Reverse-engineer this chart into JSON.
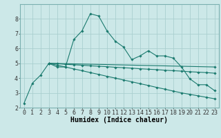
{
  "background_color": "#cce8e8",
  "grid_color": "#aacfcf",
  "line_color": "#1a7a6e",
  "xlabel": "Humidex (Indice chaleur)",
  "xlabel_fontsize": 7,
  "tick_fontsize": 6,
  "xlim": [
    -0.5,
    23.5
  ],
  "ylim": [
    2,
    9
  ],
  "yticks": [
    2,
    3,
    4,
    5,
    6,
    7,
    8
  ],
  "xticks": [
    0,
    1,
    2,
    3,
    4,
    5,
    6,
    7,
    8,
    9,
    10,
    11,
    12,
    13,
    14,
    15,
    16,
    17,
    18,
    19,
    20,
    21,
    22,
    23
  ],
  "series": [
    {
      "x": [
        0,
        1,
        2,
        3,
        4,
        5,
        6,
        7,
        8,
        9,
        10,
        11,
        12,
        13,
        14,
        15,
        16,
        17,
        18,
        19,
        20,
        21,
        22,
        23
      ],
      "y": [
        2.3,
        3.65,
        4.2,
        5.0,
        4.75,
        4.75,
        6.6,
        7.2,
        8.35,
        8.2,
        7.2,
        6.5,
        6.1,
        5.25,
        5.5,
        5.85,
        5.5,
        5.5,
        5.35,
        4.75,
        3.95,
        3.55,
        3.55,
        3.15
      ]
    },
    {
      "x": [
        3,
        4,
        5,
        6,
        7,
        8,
        9,
        10,
        11,
        12,
        13,
        14,
        15,
        16,
        17,
        18,
        19,
        20,
        21,
        22,
        23
      ],
      "y": [
        5.0,
        4.87,
        4.75,
        4.62,
        4.5,
        4.37,
        4.25,
        4.12,
        4.0,
        3.87,
        3.75,
        3.62,
        3.5,
        3.37,
        3.25,
        3.12,
        3.0,
        2.9,
        2.8,
        2.7,
        2.6
      ]
    },
    {
      "x": [
        3,
        23
      ],
      "y": [
        5.0,
        4.75
      ]
    },
    {
      "x": [
        3,
        4,
        5,
        6,
        7,
        8,
        9,
        10,
        11,
        12,
        13,
        14,
        15,
        16,
        17,
        18,
        19,
        20,
        21,
        22,
        23
      ],
      "y": [
        5.0,
        4.97,
        4.93,
        4.9,
        4.87,
        4.83,
        4.8,
        4.77,
        4.73,
        4.7,
        4.67,
        4.63,
        4.6,
        4.57,
        4.53,
        4.5,
        4.47,
        4.43,
        4.4,
        4.37,
        4.33
      ]
    }
  ]
}
